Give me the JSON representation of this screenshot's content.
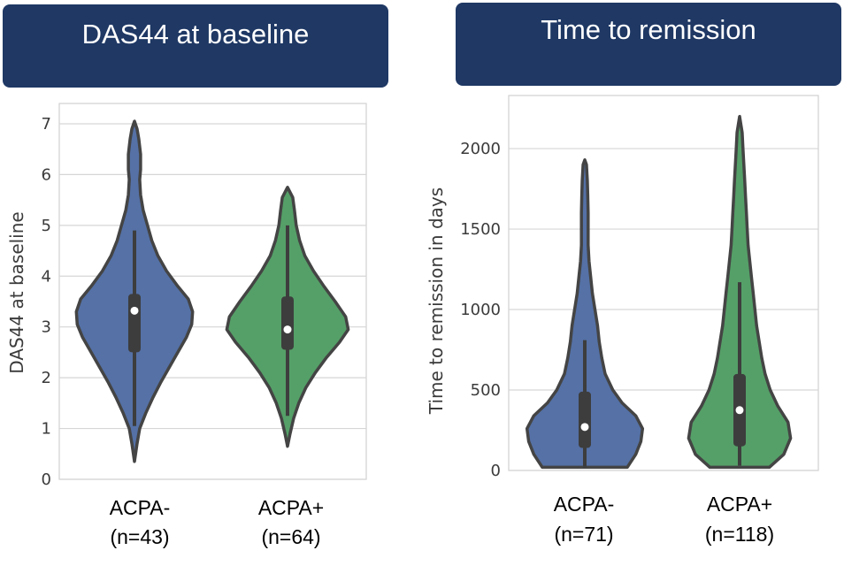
{
  "chart_data": [
    {
      "type": "violin",
      "title": "DAS44 at baseline",
      "ylabel": "DAS44 at baseline",
      "ylim": [
        0,
        7.4
      ],
      "yticks": [
        0,
        1,
        2,
        3,
        4,
        5,
        6,
        7
      ],
      "grid": true,
      "categories": [
        {
          "line1": "ACPA-",
          "line2": "(n=43)",
          "color": "#5571a6",
          "violin": [
            [
              0.35,
              0.0
            ],
            [
              0.7,
              0.03
            ],
            [
              1.0,
              0.06
            ],
            [
              1.3,
              0.13
            ],
            [
              1.6,
              0.21
            ],
            [
              1.9,
              0.3
            ],
            [
              2.2,
              0.4
            ],
            [
              2.5,
              0.5
            ],
            [
              2.8,
              0.6
            ],
            [
              3.05,
              0.66
            ],
            [
              3.3,
              0.67
            ],
            [
              3.55,
              0.62
            ],
            [
              3.8,
              0.5
            ],
            [
              4.1,
              0.37
            ],
            [
              4.4,
              0.27
            ],
            [
              4.7,
              0.2
            ],
            [
              5.0,
              0.15
            ],
            [
              5.3,
              0.1
            ],
            [
              5.6,
              0.07
            ],
            [
              5.9,
              0.06
            ],
            [
              6.1,
              0.07
            ],
            [
              6.4,
              0.07
            ],
            [
              6.7,
              0.05
            ],
            [
              6.9,
              0.03
            ],
            [
              7.05,
              0.0
            ]
          ],
          "whisker": [
            1.05,
            4.9
          ],
          "q1": 2.5,
          "q3": 3.65,
          "median": 3.32
        },
        {
          "line1": "ACPA+",
          "line2": "(n=64)",
          "color": "#55a068",
          "violin": [
            [
              0.65,
              0.0
            ],
            [
              0.9,
              0.03
            ],
            [
              1.2,
              0.07
            ],
            [
              1.5,
              0.13
            ],
            [
              1.8,
              0.21
            ],
            [
              2.1,
              0.32
            ],
            [
              2.4,
              0.45
            ],
            [
              2.7,
              0.6
            ],
            [
              2.95,
              0.7
            ],
            [
              3.2,
              0.67
            ],
            [
              3.5,
              0.55
            ],
            [
              3.8,
              0.42
            ],
            [
              4.1,
              0.3
            ],
            [
              4.4,
              0.2
            ],
            [
              4.7,
              0.14
            ],
            [
              5.0,
              0.1
            ],
            [
              5.3,
              0.08
            ],
            [
              5.55,
              0.06
            ],
            [
              5.75,
              0.0
            ]
          ],
          "whisker": [
            1.25,
            5.0
          ],
          "q1": 2.55,
          "q3": 3.6,
          "median": 2.95
        }
      ]
    },
    {
      "type": "violin",
      "title": "Time to remission",
      "ylabel": "Time to remission in days",
      "ylim": [
        0,
        2330
      ],
      "yticks": [
        0,
        500,
        1000,
        1500,
        2000
      ],
      "grid": true,
      "categories": [
        {
          "line1": "ACPA-",
          "line2": "(n=71)",
          "color": "#5571a6",
          "violin": [
            [
              20,
              0.5
            ],
            [
              100,
              0.6
            ],
            [
              180,
              0.66
            ],
            [
              260,
              0.68
            ],
            [
              340,
              0.6
            ],
            [
              420,
              0.44
            ],
            [
              500,
              0.33
            ],
            [
              600,
              0.24
            ],
            [
              700,
              0.2
            ],
            [
              800,
              0.17
            ],
            [
              900,
              0.15
            ],
            [
              1000,
              0.12
            ],
            [
              1100,
              0.09
            ],
            [
              1200,
              0.07
            ],
            [
              1300,
              0.05
            ],
            [
              1400,
              0.04
            ],
            [
              1500,
              0.04
            ],
            [
              1600,
              0.04
            ],
            [
              1700,
              0.035
            ],
            [
              1800,
              0.03
            ],
            [
              1900,
              0.02
            ],
            [
              1930,
              0.0
            ]
          ],
          "whisker": [
            20,
            810
          ],
          "q1": 140,
          "q3": 490,
          "median": 270
        },
        {
          "line1": "ACPA+",
          "line2": "(n=118)",
          "color": "#55a068",
          "violin": [
            [
              20,
              0.35
            ],
            [
              100,
              0.52
            ],
            [
              200,
              0.6
            ],
            [
              300,
              0.57
            ],
            [
              400,
              0.45
            ],
            [
              500,
              0.36
            ],
            [
              600,
              0.3
            ],
            [
              700,
              0.26
            ],
            [
              800,
              0.23
            ],
            [
              900,
              0.2
            ],
            [
              1000,
              0.18
            ],
            [
              1100,
              0.16
            ],
            [
              1200,
              0.14
            ],
            [
              1300,
              0.12
            ],
            [
              1400,
              0.1
            ],
            [
              1500,
              0.09
            ],
            [
              1600,
              0.08
            ],
            [
              1700,
              0.07
            ],
            [
              1800,
              0.06
            ],
            [
              1900,
              0.05
            ],
            [
              2000,
              0.04
            ],
            [
              2100,
              0.03
            ],
            [
              2200,
              0.0
            ]
          ],
          "whisker": [
            30,
            1170
          ],
          "q1": 150,
          "q3": 600,
          "median": 375
        }
      ]
    }
  ]
}
